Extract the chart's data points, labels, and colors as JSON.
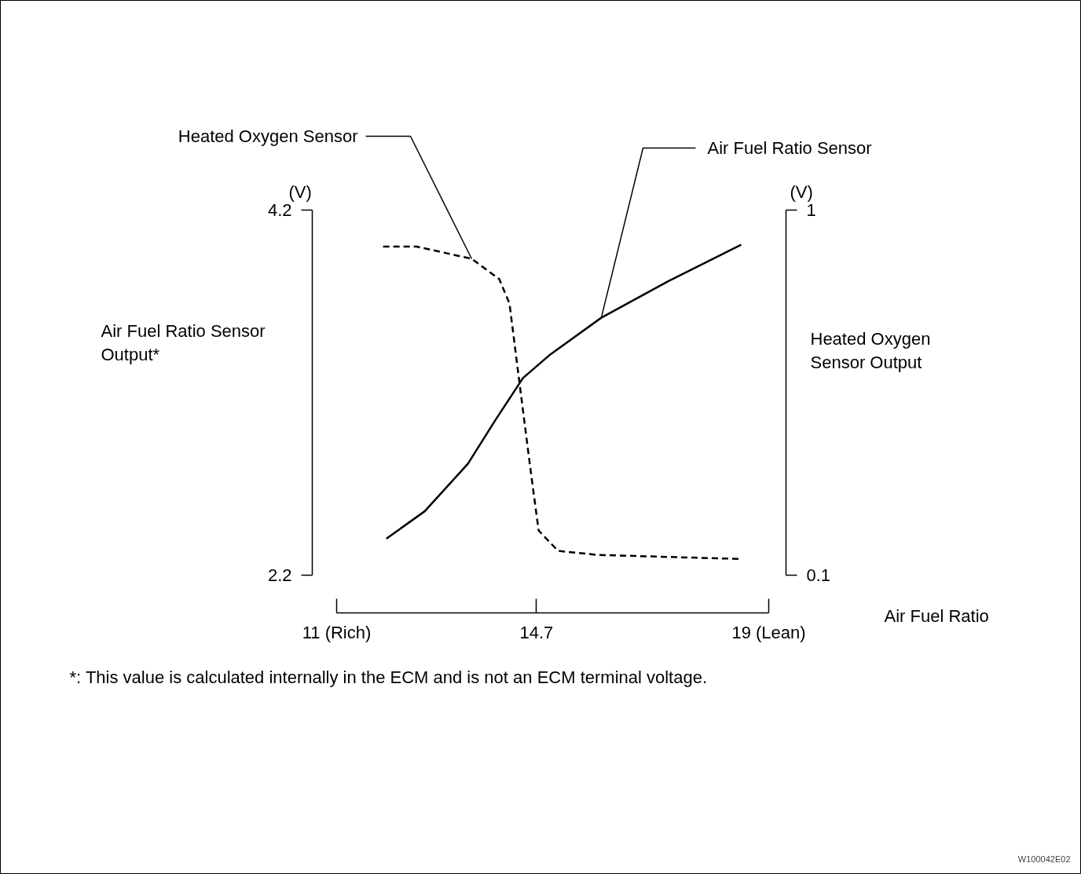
{
  "chart_data": {
    "type": "line",
    "xlabel": "Air Fuel Ratio",
    "ylabel": "Air Fuel Ratio Sensor Output*",
    "y2label": "Heated Oxygen Sensor Output",
    "xlim": [
      11,
      19
    ],
    "xticks": [
      {
        "value": 11,
        "label": "11 (Rich)"
      },
      14.7,
      {
        "value": 19,
        "label": "19 (Lean)"
      }
    ],
    "ylim": [
      2.2,
      4.2
    ],
    "yticks": [
      2.2,
      4.2
    ],
    "y2lim": [
      0.1,
      1
    ],
    "y2ticks": [
      0.1,
      1
    ],
    "grid": false,
    "marker": "none",
    "series": [
      {
        "name": "Heated Oxygen Sensor",
        "color": "#000000",
        "axis": "y2",
        "line_style": "dashed",
        "x": [
          11.86,
          12.48,
          13.5,
          14.01,
          14.2,
          14.37,
          14.59,
          14.74,
          15.1,
          15.83,
          18.49
        ],
        "values": [
          0.91,
          0.91,
          0.88,
          0.83,
          0.77,
          0.59,
          0.36,
          0.21,
          0.16,
          0.15,
          0.14
        ]
      },
      {
        "name": "Air Fuel Ratio Sensor",
        "color": "#000000",
        "line_style": "solid",
        "x": [
          11.92,
          12.63,
          13.43,
          13.94,
          14.45,
          14.96,
          15.9,
          17.14,
          18.49
        ],
        "values": [
          2.4,
          2.55,
          2.81,
          3.05,
          3.28,
          3.41,
          3.61,
          3.81,
          4.01
        ]
      }
    ],
    "annotations": [
      "(V)",
      "(V)",
      "*: This value is calculated internally in the ECM and is not an ECM terminal voltage.",
      "W100042E02"
    ]
  }
}
